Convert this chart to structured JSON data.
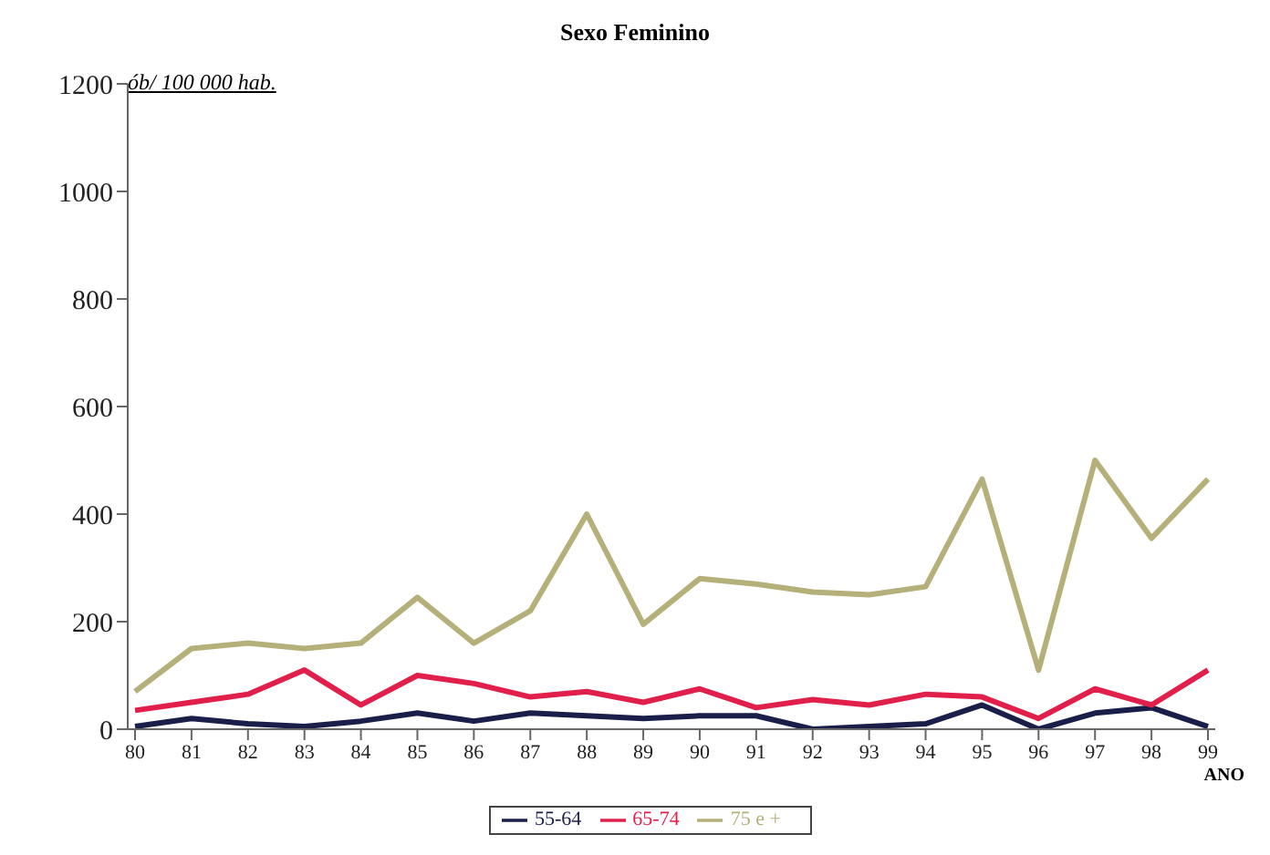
{
  "chart_data": {
    "type": "line",
    "title": "Sexo Feminino",
    "ylabel": "ób/ 100 000 hab.",
    "xlabel": "ANO",
    "categories": [
      "80",
      "81",
      "82",
      "83",
      "84",
      "85",
      "86",
      "87",
      "88",
      "89",
      "90",
      "91",
      "92",
      "93",
      "94",
      "95",
      "96",
      "97",
      "98",
      "99"
    ],
    "series": [
      {
        "name": "55-64",
        "color": "#1a1f4a",
        "values": [
          5,
          20,
          10,
          5,
          15,
          30,
          15,
          30,
          25,
          20,
          25,
          25,
          0,
          5,
          10,
          45,
          0,
          30,
          40,
          5
        ]
      },
      {
        "name": "65-74",
        "color": "#e0204a",
        "values": [
          35,
          50,
          65,
          110,
          45,
          100,
          85,
          60,
          70,
          50,
          75,
          40,
          55,
          45,
          65,
          60,
          20,
          75,
          45,
          110
        ]
      },
      {
        "name": "75 e +",
        "color": "#b5b07a",
        "values": [
          70,
          150,
          160,
          150,
          160,
          245,
          160,
          220,
          400,
          195,
          280,
          270,
          255,
          250,
          265,
          465,
          110,
          500,
          355,
          465
        ]
      }
    ],
    "ylim": [
      0,
      1200
    ],
    "yticks": [
      0,
      200,
      400,
      600,
      800,
      1000,
      1200
    ],
    "grid": false,
    "legend": "bottom",
    "marker": "none",
    "line_style": "solid"
  }
}
